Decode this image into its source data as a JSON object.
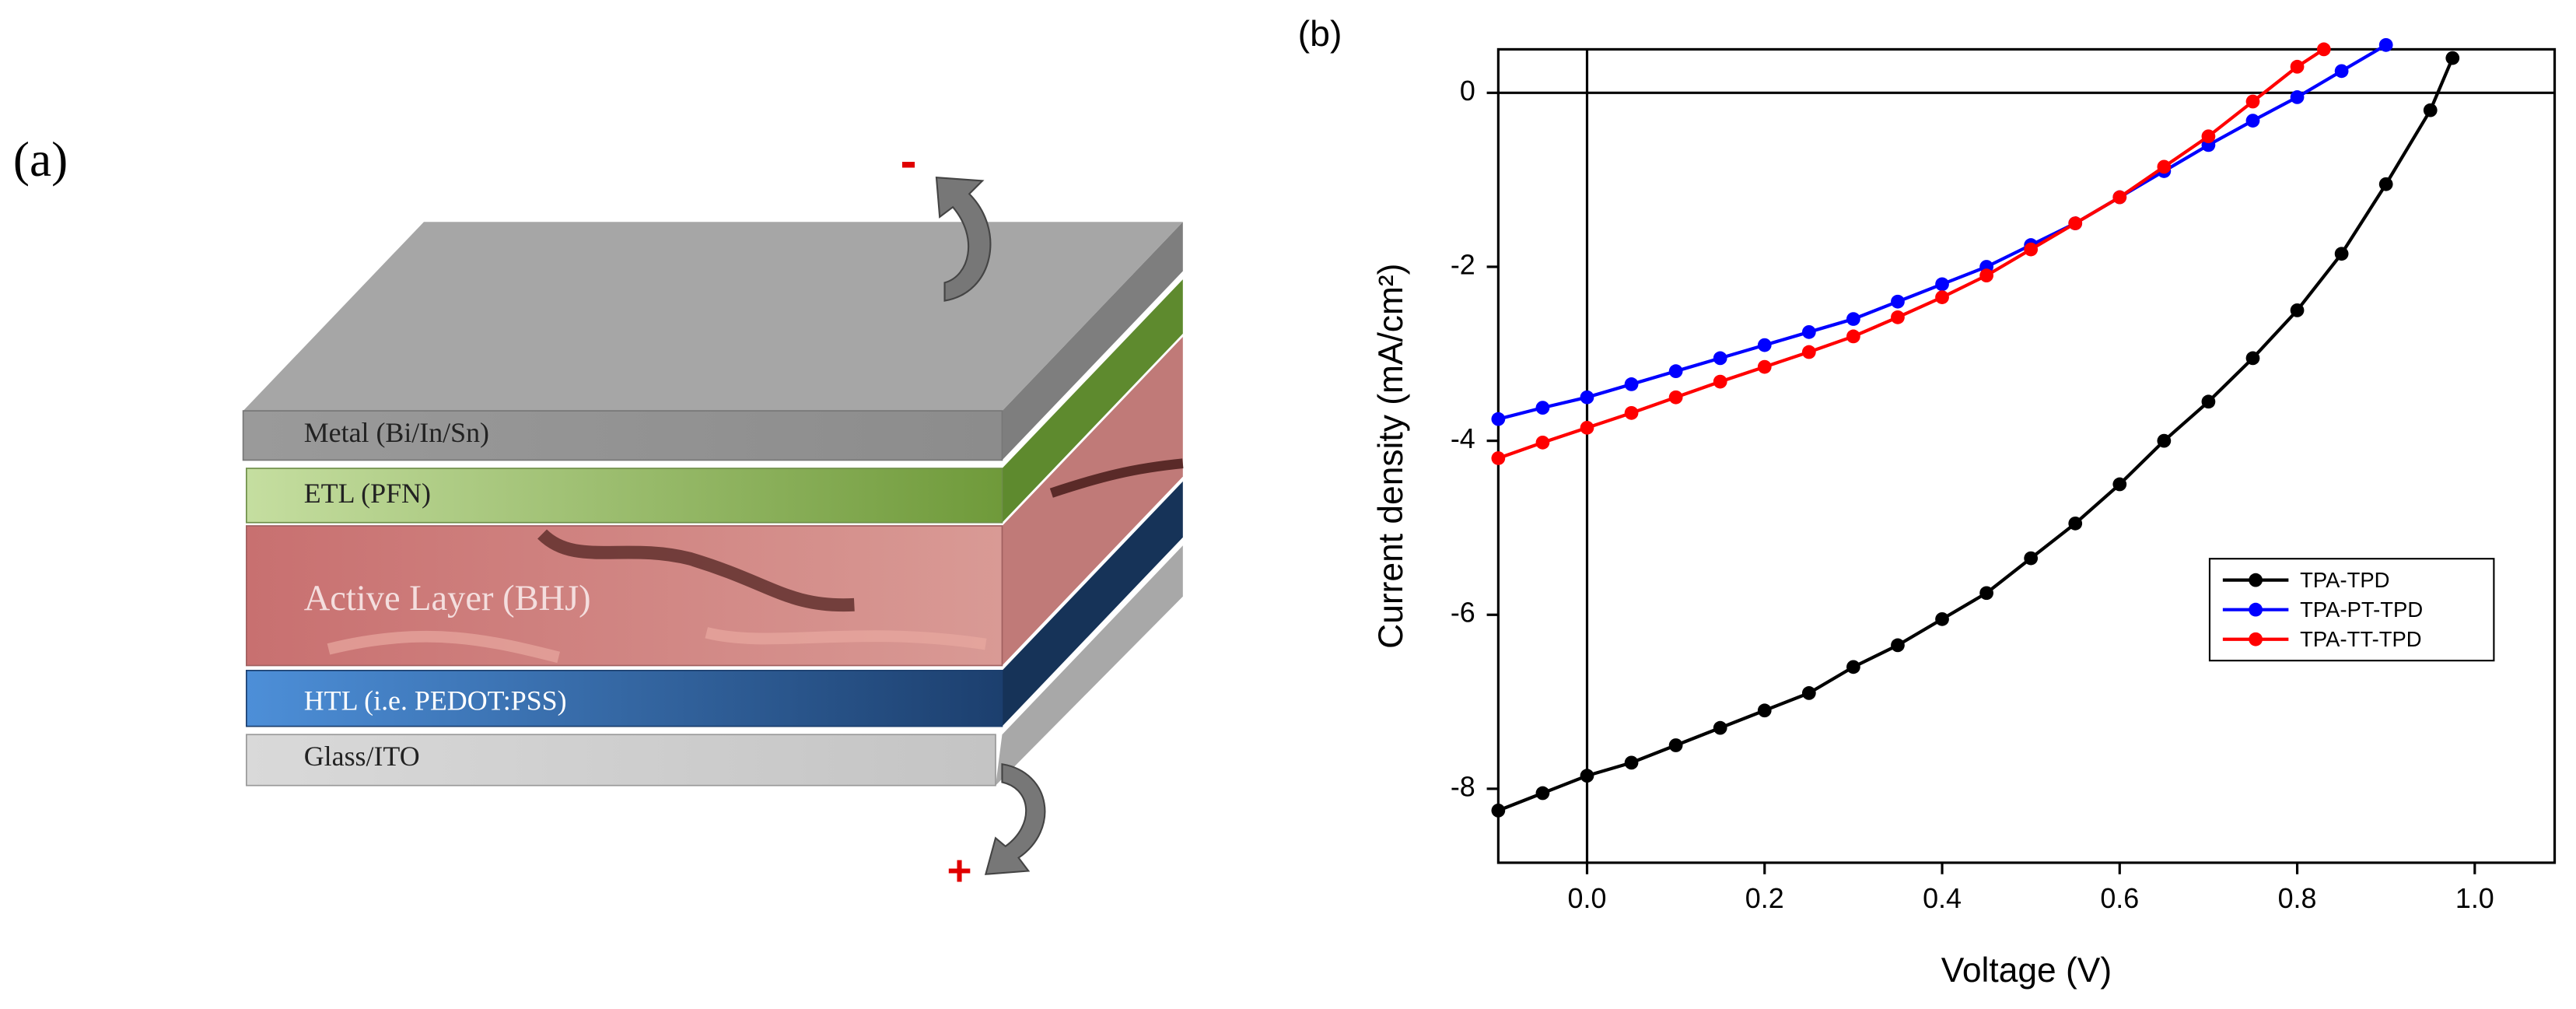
{
  "panel_labels": [
    "(a)",
    "(b)"
  ],
  "diagram": {
    "layers": [
      "Metal (Bi/In/Sn)",
      "ETL (PFN)",
      "Active Layer (BHJ)",
      "HTL (i.e. PEDOT:PSS)",
      "Glass/ITO"
    ],
    "terminals": [
      "-",
      "+"
    ]
  },
  "chart_data": {
    "type": "line",
    "xlabel": "Voltage (V)",
    "ylabel": "Current density (mA/cm²)",
    "xlim": [
      -0.1,
      1.09
    ],
    "ylim": [
      -8.85,
      0.5
    ],
    "xticks": [
      {
        "value": 0,
        "label": "0.0"
      },
      0.2,
      0.4,
      0.6,
      0.8,
      {
        "value": 1,
        "label": "1.0"
      }
    ],
    "yticks": [
      -8,
      -6,
      -4,
      -2,
      0
    ],
    "legend": "right",
    "series": [
      {
        "name": "TPA-TPD",
        "color": "#000000",
        "x": [
          -0.1,
          -0.05,
          0,
          0.05,
          0.1,
          0.15,
          0.2,
          0.25,
          0.3,
          0.35,
          0.4,
          0.45,
          0.5,
          0.55,
          0.6,
          0.65,
          0.7,
          0.75,
          0.8,
          0.85,
          0.9,
          0.95,
          0.975
        ],
        "values": [
          -8.25,
          -8.05,
          -7.85,
          -7.7,
          -7.5,
          -7.3,
          -7.1,
          -6.9,
          -6.6,
          -6.35,
          -6.05,
          -5.75,
          -5.35,
          -4.95,
          -4.5,
          -4.0,
          -3.55,
          -3.05,
          -2.5,
          -1.85,
          -1.05,
          -0.2,
          0.4
        ]
      },
      {
        "name": "TPA-PT-TPD",
        "color": "#0000ff",
        "x": [
          -0.1,
          -0.05,
          0,
          0.05,
          0.1,
          0.15,
          0.2,
          0.25,
          0.3,
          0.35,
          0.4,
          0.45,
          0.5,
          0.55,
          0.6,
          0.65,
          0.7,
          0.75,
          0.8,
          0.85,
          0.9
        ],
        "values": [
          -3.75,
          -3.62,
          -3.5,
          -3.35,
          -3.2,
          -3.05,
          -2.9,
          -2.75,
          -2.6,
          -2.4,
          -2.2,
          -2.0,
          -1.75,
          -1.5,
          -1.2,
          -0.9,
          -0.6,
          -0.32,
          -0.05,
          0.25,
          0.55
        ]
      },
      {
        "name": "TPA-TT-TPD",
        "color": "#ff0000",
        "x": [
          -0.1,
          -0.05,
          0,
          0.05,
          0.1,
          0.15,
          0.2,
          0.25,
          0.3,
          0.35,
          0.4,
          0.45,
          0.5,
          0.55,
          0.6,
          0.65,
          0.7,
          0.75,
          0.8,
          0.83
        ],
        "values": [
          -4.2,
          -4.02,
          -3.85,
          -3.68,
          -3.5,
          -3.32,
          -3.15,
          -2.98,
          -2.8,
          -2.58,
          -2.35,
          -2.1,
          -1.8,
          -1.5,
          -1.2,
          -0.85,
          -0.5,
          -0.1,
          0.3,
          0.5
        ]
      }
    ]
  }
}
